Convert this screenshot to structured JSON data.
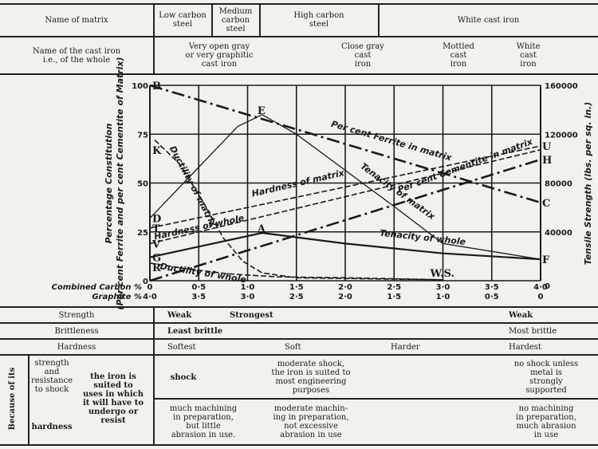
{
  "top_table": {
    "row1_label": "Name of matrix",
    "row1": [
      "Low carbon\nsteel",
      "Medium\ncarbon\nsteel",
      "High carbon\nsteel",
      "White cast iron"
    ],
    "row2_label": "Name of the cast iron\ni.e., of the whole",
    "row2": [
      "Very open gray\nor very graphitic\ncast iron",
      "Close gray\ncast\niron",
      "Mottled\ncast\niron",
      "White\ncast\niron"
    ]
  },
  "chart_data": {
    "type": "line",
    "ylabel_left": "Percentage Constitution\n(Per cent Ferrite and per cent Cementite of Matrix)",
    "ylabel_right": "Tensile Strength (lbs. per sq. in.)",
    "x_row1_label": "Combined Carbon %",
    "x_row2_label": "Graphite %",
    "x_ticks": [
      0,
      0.5,
      1.0,
      1.5,
      2.0,
      2.5,
      3.0,
      3.5,
      4.0
    ],
    "x_tick_labels_carbon": [
      "0",
      "0·5",
      "1·0",
      "1·5",
      "2·0",
      "2·5",
      "3·0",
      "3·5",
      "4·0"
    ],
    "x_tick_labels_graphite": [
      "4·0",
      "3·5",
      "3·0",
      "2·5",
      "2·0",
      "1·5",
      "1·0",
      "0·5",
      "0"
    ],
    "xlim": [
      0,
      4.0
    ],
    "ylim": [
      0,
      100
    ],
    "y_ticks_left": [
      0,
      25,
      50,
      75,
      100
    ],
    "y_tick_labels_left": [
      "0",
      "25",
      "50",
      "75",
      "100"
    ],
    "y_tick_labels_right": [
      "0",
      "40000",
      "80000",
      "120000",
      "160000"
    ],
    "grid": true,
    "series": [
      {
        "name": "Per cent Ferrite in matrix",
        "style": "dash-dot",
        "points": [
          [
            0,
            100
          ],
          [
            4.0,
            40
          ]
        ]
      },
      {
        "name": "Per cent Cementite in matrix",
        "style": "dash-dot",
        "points": [
          [
            0,
            0
          ],
          [
            4.0,
            62
          ]
        ]
      },
      {
        "name": "Tenacity of matrix",
        "style": "solid-thin",
        "points": [
          [
            0,
            32
          ],
          [
            0.9,
            79
          ],
          [
            1.15,
            85
          ],
          [
            1.5,
            75
          ],
          [
            2.5,
            38
          ],
          [
            3.0,
            19
          ],
          [
            4.0,
            11
          ]
        ]
      },
      {
        "name": "Tenacity of whole",
        "style": "solid",
        "points": [
          [
            0,
            12
          ],
          [
            1.15,
            24.5
          ],
          [
            2.0,
            19
          ],
          [
            3.0,
            14
          ],
          [
            4.0,
            11
          ]
        ]
      },
      {
        "name": "Hardness of matrix",
        "style": "dashed",
        "points": [
          [
            0,
            27
          ],
          [
            4.0,
            69
          ]
        ]
      },
      {
        "name": "Hardness of whole",
        "style": "dashed",
        "points": [
          [
            0,
            19
          ],
          [
            4.0,
            67
          ]
        ]
      },
      {
        "name": "Ductility of matrix",
        "style": "dashed",
        "points": [
          [
            0.05,
            72
          ],
          [
            0.3,
            60
          ],
          [
            0.55,
            40
          ],
          [
            0.75,
            22
          ],
          [
            0.95,
            10
          ],
          [
            1.15,
            4
          ],
          [
            1.5,
            1.5
          ],
          [
            2.5,
            0.8
          ],
          [
            3.0,
            0.5
          ]
        ]
      },
      {
        "name": "Ductility of whole",
        "style": "dashed",
        "points": [
          [
            0,
            9
          ],
          [
            0.4,
            6
          ],
          [
            0.8,
            3.5
          ],
          [
            1.3,
            2
          ],
          [
            2.0,
            1.5
          ],
          [
            3.0,
            0.5
          ]
        ]
      }
    ],
    "point_labels": [
      {
        "text": "B",
        "x": 0,
        "y": 100
      },
      {
        "text": "E",
        "x": 1.15,
        "y": 85
      },
      {
        "text": "K",
        "x": 0,
        "y": 67
      },
      {
        "text": "D",
        "x": 0,
        "y": 32
      },
      {
        "text": "T",
        "x": 0,
        "y": 27
      },
      {
        "text": "V",
        "x": 0,
        "y": 19
      },
      {
        "text": "A",
        "x": 1.15,
        "y": 24.5
      },
      {
        "text": "G",
        "x": 0,
        "y": 12
      },
      {
        "text": "R",
        "x": 0,
        "y": 7
      },
      {
        "text": "U",
        "x": 4.0,
        "y": 69
      },
      {
        "text": "H",
        "x": 4.0,
        "y": 62
      },
      {
        "text": "C",
        "x": 4.0,
        "y": 40
      },
      {
        "text": "F",
        "x": 4.0,
        "y": 11
      },
      {
        "text": "W.S.",
        "x": 3.0,
        "y": 0
      }
    ]
  },
  "bottom_table": {
    "strength": {
      "label": "Strength",
      "values": [
        "Weak",
        "Strongest",
        "Weak"
      ]
    },
    "brittleness": {
      "label": "Brittleness",
      "values": [
        "Least brittle",
        "Most brittle"
      ]
    },
    "hardness": {
      "label": "Hardness",
      "values": [
        "Softest",
        "Soft",
        "Harder",
        "Hardest"
      ]
    },
    "because_label": "Because of its",
    "sub1": "strength\nand\nresistance\nto shock",
    "sub2": "hardness",
    "suited": "the iron is\nsuited to\nuses in which\nit will have to\nundergo or\nresist",
    "shock_row": [
      "shock",
      "moderate shock,\nthe iron is suited to\nmost engineering\npurposes",
      "no shock unless\nmetal is\nstrongly\nsupported"
    ],
    "machining_row": [
      "much machining\nin preparation,\nbut little\nabrasion in use.",
      "moderate machin-\ning in preparation,\nnot excessive\nabrasion in use",
      "no machining\nin preparation,\nmuch abrasion\nin use"
    ]
  }
}
